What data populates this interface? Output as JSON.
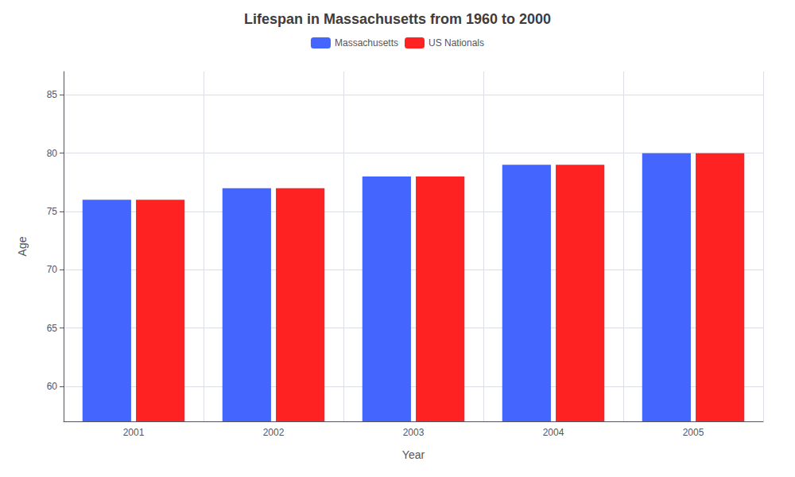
{
  "chart_data": {
    "type": "bar",
    "title": "Lifespan in Massachusetts from 1960 to 2000",
    "xlabel": "Year",
    "ylabel": "Age",
    "categories": [
      "2001",
      "2002",
      "2003",
      "2004",
      "2005"
    ],
    "series": [
      {
        "name": "Massachusetts",
        "color": "#4466ff",
        "values": [
          76,
          77,
          78,
          79,
          80
        ]
      },
      {
        "name": "US Nationals",
        "color": "#ff2222",
        "values": [
          76,
          77,
          78,
          79,
          80
        ]
      }
    ],
    "ylim": [
      57,
      87
    ],
    "yticks": [
      60,
      65,
      70,
      75,
      80,
      85
    ],
    "grid": true,
    "legend": "top"
  }
}
